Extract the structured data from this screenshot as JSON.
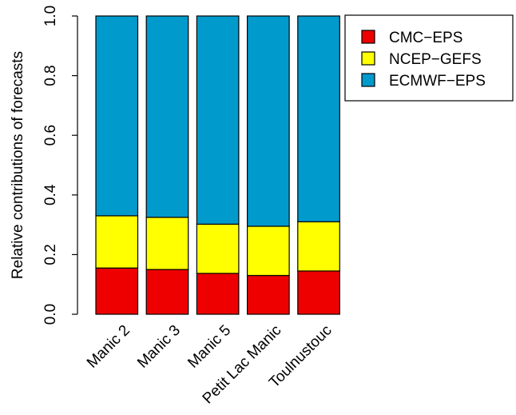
{
  "chart_data": {
    "type": "bar",
    "stacked": true,
    "title": "",
    "xlabel": "",
    "ylabel": "Relative contributions of forecasts",
    "ylim": [
      0,
      1
    ],
    "yticks": [
      "0.0",
      "0.2",
      "0.4",
      "0.6",
      "0.8",
      "1.0"
    ],
    "categories": [
      "Manic 2",
      "Manic 3",
      "Manic 5",
      "Petit Lac Manic",
      "Toulnustouc"
    ],
    "series": [
      {
        "name": "CMC-EPS",
        "color": "#ee0000",
        "values": [
          0.155,
          0.15,
          0.137,
          0.13,
          0.145
        ]
      },
      {
        "name": "NCEP-GEFS",
        "color": "#ffff00",
        "values": [
          0.175,
          0.175,
          0.165,
          0.165,
          0.165
        ]
      },
      {
        "name": "ECMWF-EPS",
        "color": "#009acd",
        "values": [
          0.67,
          0.675,
          0.698,
          0.705,
          0.69
        ]
      }
    ],
    "legend": {
      "position": "top-right",
      "labels": [
        "CMC−EPS",
        "NCEP−GEFS",
        "ECMWF−EPS"
      ]
    },
    "grid": false
  }
}
